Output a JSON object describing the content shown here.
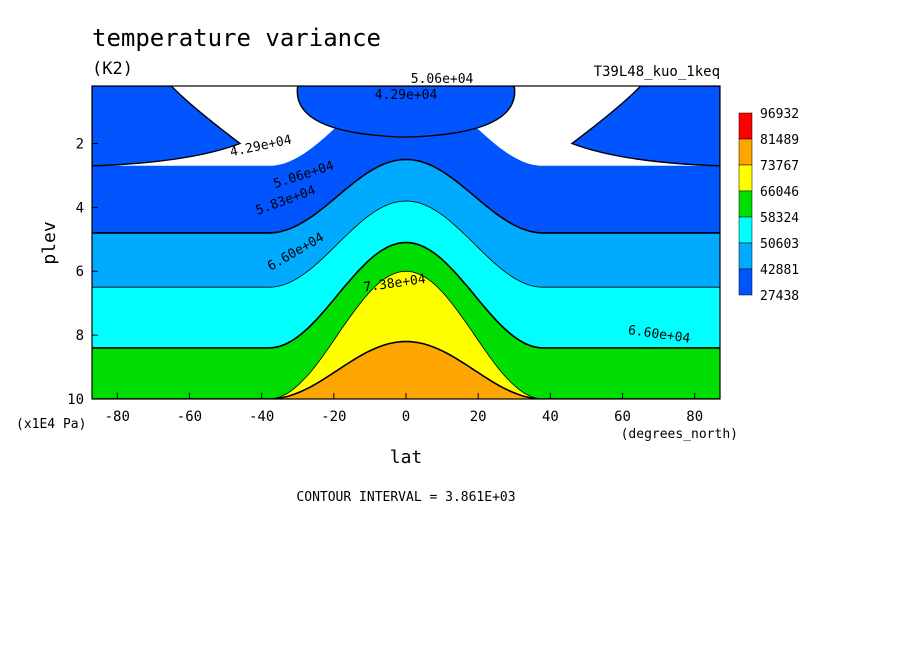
{
  "chart_data": {
    "type": "heatmap",
    "title": "temperature variance",
    "subtitle": "(K2)",
    "run_label": "T39L48_kuo_1keq",
    "xlabel": "lat",
    "ylabel": "plev",
    "x_units": "(degrees_north)",
    "y_units": "(x1E4 Pa)",
    "xlim": [
      -87,
      87
    ],
    "ylim": [
      10,
      0.2
    ],
    "x_ticks": [
      "-80",
      "-60",
      "-40",
      "-20",
      "0",
      "20",
      "40",
      "60",
      "80"
    ],
    "y_ticks": [
      "2",
      "4",
      "6",
      "8",
      "10"
    ],
    "colorbar": {
      "levels": [
        "96932",
        "81489",
        "73767",
        "66046",
        "58324",
        "50603",
        "42881",
        "27438"
      ],
      "colors": [
        "#ff0000",
        "#ffa500",
        "#ffff00",
        "#00dd00",
        "#00ffff",
        "#00aaff",
        "#0055ff"
      ]
    },
    "contour_labels": [
      "4.29e+04",
      "4.29e+04",
      "5.06e+04",
      "5.06e+04",
      "5.83e+04",
      "6.60e+04",
      "6.60e+04",
      "7.38e+04"
    ],
    "contour_interval_text": "CONTOUR INTERVAL = 3.861E+03",
    "bands": [
      {
        "level": "27438",
        "color": "#0055ff",
        "depth_edge": 2.7,
        "depth_center": 0.2
      },
      {
        "level": "42881",
        "color": "#00aaff",
        "depth_edge": 4.8,
        "depth_center": 2.5
      },
      {
        "level": "50603",
        "color": "#00ffff",
        "depth_edge": 6.5,
        "depth_center": 3.8
      },
      {
        "level": "58324",
        "color": "#00dd00",
        "depth_edge": 8.4,
        "depth_center": 5.1
      },
      {
        "level": "66046",
        "color": "#ffff00",
        "depth_edge": 10.0,
        "depth_center": 6.0
      },
      {
        "level": "73767",
        "color": "#ffa500",
        "depth_edge": 10.0,
        "depth_center": 8.2
      },
      {
        "level": "81489",
        "color": "#ff0000",
        "depth_edge": 10.0,
        "depth_center": 10.0
      }
    ]
  }
}
